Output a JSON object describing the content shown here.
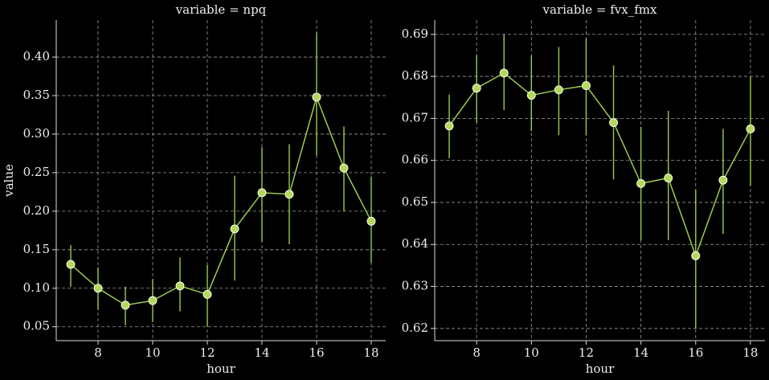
{
  "chart_data": [
    {
      "type": "line",
      "title": "variable = npq",
      "xlabel": "hour",
      "ylabel": "value",
      "x": [
        7,
        8,
        9,
        10,
        11,
        12,
        13,
        14,
        15,
        16,
        17,
        18
      ],
      "values": [
        0.131,
        0.1,
        0.078,
        0.084,
        0.103,
        0.092,
        0.177,
        0.224,
        0.222,
        0.348,
        0.256,
        0.187
      ],
      "ci_low": [
        0.102,
        0.072,
        0.052,
        0.056,
        0.07,
        0.05,
        0.11,
        0.16,
        0.157,
        0.272,
        0.2,
        0.133
      ],
      "ci_high": [
        0.156,
        0.127,
        0.102,
        0.112,
        0.14,
        0.13,
        0.246,
        0.283,
        0.287,
        0.432,
        0.31,
        0.245
      ],
      "color": "#9ccc4e",
      "xlim": [
        6.47,
        18.53
      ],
      "xticks": [
        8,
        10,
        12,
        14,
        16,
        18
      ],
      "ylim": [
        0.032,
        0.448
      ],
      "yticks": [
        0.05,
        {
          "value": 0.1,
          "label": "0.10"
        },
        0.15,
        {
          "value": 0.2,
          "label": "0.20"
        },
        0.25,
        {
          "value": 0.3,
          "label": "0.30"
        },
        0.35,
        {
          "value": 0.4,
          "label": "0.40"
        }
      ],
      "grid": true
    },
    {
      "type": "line",
      "title": "variable = fvx_fmx",
      "xlabel": "hour",
      "x": [
        7,
        8,
        9,
        10,
        11,
        12,
        13,
        14,
        15,
        16,
        17,
        18
      ],
      "values": [
        0.6682,
        0.6772,
        0.6808,
        0.6755,
        0.6768,
        0.6778,
        0.669,
        0.6545,
        0.6558,
        0.6373,
        0.6553,
        0.6675
      ],
      "ci_low": [
        0.6605,
        0.669,
        0.672,
        0.667,
        0.666,
        0.666,
        0.6555,
        0.641,
        0.641,
        0.62,
        0.6425,
        0.654
      ],
      "ci_high": [
        0.6757,
        0.685,
        0.69,
        0.685,
        0.687,
        0.689,
        0.6826,
        0.668,
        0.6718,
        0.653,
        0.6675,
        0.68
      ],
      "color": "#9ccc4e",
      "xlim": [
        6.47,
        18.53
      ],
      "xticks": [
        8,
        10,
        12,
        14,
        16,
        18
      ],
      "ylim": [
        0.6171,
        0.6934
      ],
      "yticks": [
        0.62,
        0.63,
        0.64,
        0.65,
        0.66,
        0.67,
        0.68,
        0.69
      ],
      "grid": true
    }
  ]
}
